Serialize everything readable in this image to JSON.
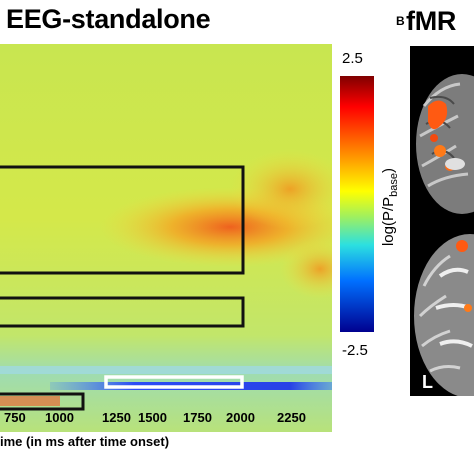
{
  "panel_a": {
    "title": "EEG-standalone",
    "xlabel": "ime (in ms after time onset)",
    "x_ticks": [
      "750",
      "1000",
      "1250",
      "1500",
      "1750",
      "2000",
      "2250"
    ],
    "colorbar": {
      "max_label": "2.5",
      "min_label": "-2.5",
      "label_main": "log(P/P",
      "label_sub": "base",
      "label_end": ")",
      "colormap": "jet"
    }
  },
  "panel_b": {
    "label": "B",
    "title": "fMR",
    "view_label": "L"
  },
  "chart_data": {
    "type": "heatmap",
    "title": "EEG-standalone",
    "xlabel": "ime (in ms after time onset)",
    "ylabel": "",
    "x_tick_labels": [
      "750",
      "1000",
      "1250",
      "1500",
      "1750",
      "2000",
      "2250"
    ],
    "color_range": [
      -2.5,
      2.5
    ],
    "colorbar_label": "log(P/Pbase)",
    "colors": {
      "box_black": "#111111",
      "box_white": "#ffffff"
    }
  }
}
